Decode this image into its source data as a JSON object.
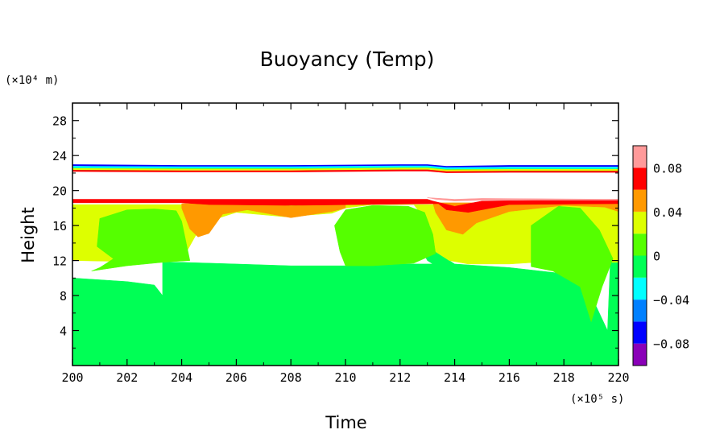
{
  "chart_data": {
    "type": "heatmap",
    "title": "Buoyancy (Temp)",
    "xlabel": "Time",
    "ylabel": "Height",
    "x_unit_note": "(×10⁵ s)",
    "y_unit_note": "(×10⁴ m)",
    "xlim": [
      200,
      220
    ],
    "ylim": [
      0,
      30
    ],
    "x_ticks": [
      200,
      202,
      204,
      206,
      208,
      210,
      212,
      214,
      216,
      218,
      220
    ],
    "y_ticks": [
      4,
      8,
      12,
      16,
      20,
      24,
      28
    ],
    "x_tick_labels": [
      "200",
      "202",
      "204",
      "206",
      "208",
      "210",
      "212",
      "214",
      "216",
      "218",
      "220"
    ],
    "y_tick_labels": [
      "4",
      "8",
      "12",
      "16",
      "20",
      "24",
      "28"
    ],
    "colorbar": {
      "levels": [
        -0.1,
        -0.08,
        -0.06,
        -0.04,
        -0.02,
        0,
        0.02,
        0.04,
        0.06,
        0.08,
        0.1
      ],
      "colors": [
        "#8a00b8",
        "#0000ff",
        "#0080ff",
        "#00ffff",
        "#00ff55",
        "#55ff00",
        "#ddff00",
        "#ff9900",
        "#ff0000",
        "#ff9a9a"
      ],
      "tick_values": [
        -0.08,
        -0.04,
        0,
        0.04,
        0.08
      ],
      "tick_labels": [
        "−0.08",
        "−0.04",
        "0",
        "0.04",
        "0.08"
      ]
    },
    "regions": [
      {
        "name": "lower-layer",
        "value": -0.01,
        "color": "#00ff55",
        "polygon": [
          [
            200,
            0
          ],
          [
            220,
            0
          ],
          [
            220,
            12
          ],
          [
            219.7,
            11.8
          ],
          [
            219.6,
            4
          ],
          [
            219,
            8
          ],
          [
            218,
            10.5
          ],
          [
            216,
            11.2
          ],
          [
            214,
            11.6
          ],
          [
            213.3,
            13
          ],
          [
            212.8,
            15
          ],
          [
            212.3,
            16
          ],
          [
            213,
            12
          ],
          [
            213.2,
            11.6
          ],
          [
            212,
            11.6
          ],
          [
            210,
            11.4
          ],
          [
            208,
            11.4
          ],
          [
            206,
            11.6
          ],
          [
            204,
            11.8
          ],
          [
            203.3,
            11.8
          ],
          [
            203.3,
            8.0
          ],
          [
            203.0,
            9.2
          ],
          [
            202,
            9.6
          ],
          [
            200,
            10
          ]
        ]
      },
      {
        "name": "mid-layer",
        "value": 0.03,
        "color": "#ddff00",
        "polygon": [
          [
            200,
            18.4
          ],
          [
            220,
            18.4
          ],
          [
            220,
            11.8
          ],
          [
            219.7,
            11.8
          ],
          [
            219,
            12.2
          ],
          [
            216,
            11.6
          ],
          [
            214.5,
            11.6
          ],
          [
            213.8,
            12
          ],
          [
            213.3,
            13
          ],
          [
            213.1,
            16
          ],
          [
            212.5,
            18.4
          ],
          [
            211,
            18.4
          ],
          [
            210,
            18.0
          ],
          [
            209.5,
            17.4
          ],
          [
            207.8,
            17.0
          ],
          [
            206,
            17.5
          ],
          [
            205,
            16.5
          ],
          [
            204.5,
            14.8
          ],
          [
            204,
            12.0
          ],
          [
            203.3,
            11.8
          ],
          [
            200,
            12
          ]
        ]
      },
      {
        "name": "left-cell",
        "value": 0.02,
        "color": "#55ff00",
        "polygon": [
          [
            200.7,
            10.8
          ],
          [
            201,
            11.2
          ],
          [
            201.5,
            12.2
          ],
          [
            200.9,
            13.6
          ],
          [
            201,
            16.8
          ],
          [
            202,
            17.8
          ],
          [
            203,
            17.9
          ],
          [
            203.8,
            17.7
          ],
          [
            204.0,
            16.5
          ],
          [
            204.3,
            12
          ],
          [
            203.3,
            11.8
          ],
          [
            202,
            11.4
          ],
          [
            200.7,
            10.8
          ]
        ]
      },
      {
        "name": "middle-cell",
        "value": 0.02,
        "color": "#55ff00",
        "polygon": [
          [
            210,
            11.4
          ],
          [
            209.8,
            13
          ],
          [
            209.6,
            16
          ],
          [
            210,
            17.8
          ],
          [
            211,
            18.3
          ],
          [
            212.3,
            18.2
          ],
          [
            212.9,
            17.5
          ],
          [
            213.2,
            15
          ],
          [
            213.3,
            12.8
          ],
          [
            212.5,
            11.7
          ],
          [
            211,
            11.4
          ]
        ]
      },
      {
        "name": "right-cell",
        "value": 0.02,
        "color": "#55ff00",
        "polygon": [
          [
            216.8,
            11.3
          ],
          [
            216.8,
            16
          ],
          [
            217.8,
            18.2
          ],
          [
            218.6,
            18
          ],
          [
            219.3,
            15.5
          ],
          [
            219.8,
            12.2
          ],
          [
            219.4,
            9
          ],
          [
            219.0,
            5.0
          ],
          [
            218.6,
            9
          ],
          [
            217.6,
            10.8
          ]
        ]
      },
      {
        "name": "warm-band-1",
        "value": 0.05,
        "color": "#ff9900",
        "polygon": [
          [
            204,
            18.5
          ],
          [
            207,
            18.6
          ],
          [
            208,
            18.2
          ],
          [
            209.5,
            18.5
          ],
          [
            210,
            18.6
          ],
          [
            210,
            18.0
          ],
          [
            209.5,
            17.6
          ],
          [
            208,
            16.9
          ],
          [
            206.4,
            17.8
          ],
          [
            205.5,
            17.3
          ],
          [
            205,
            15.1
          ],
          [
            204.6,
            14.7
          ],
          [
            204.3,
            15.6
          ],
          [
            204,
            18.0
          ]
        ]
      },
      {
        "name": "warm-band-2",
        "value": 0.05,
        "color": "#ff9900",
        "polygon": [
          [
            213.2,
            18.6
          ],
          [
            216,
            18.6
          ],
          [
            218,
            18.5
          ],
          [
            220,
            18.6
          ],
          [
            220,
            17.6
          ],
          [
            219.5,
            18.1
          ],
          [
            218,
            18.3
          ],
          [
            216,
            17.6
          ],
          [
            214.8,
            16.3
          ],
          [
            214.3,
            15.0
          ],
          [
            213.7,
            15.5
          ],
          [
            213.3,
            17.5
          ]
        ]
      },
      {
        "name": "upper-red",
        "value": 0.07,
        "color": "#ff0000",
        "polygon": [
          [
            200,
            19.0
          ],
          [
            213,
            19.0
          ],
          [
            213.2,
            18.8
          ],
          [
            214,
            18.2
          ],
          [
            215,
            18.8
          ],
          [
            220,
            19.0
          ],
          [
            220,
            18.5
          ],
          [
            216,
            18.4
          ],
          [
            214.5,
            17.5
          ],
          [
            213.7,
            17.8
          ],
          [
            213.4,
            18.5
          ],
          [
            208,
            18.3
          ],
          [
            205,
            18.4
          ],
          [
            204,
            18.6
          ],
          [
            200,
            18.6
          ]
        ]
      },
      {
        "name": "upper-pink",
        "value": 0.09,
        "color": "#ff9a9a",
        "polygon": [
          [
            213,
            19.2
          ],
          [
            214,
            19.0
          ],
          [
            215,
            19.1
          ],
          [
            220,
            19.0
          ],
          [
            220,
            18.9
          ],
          [
            215,
            18.9
          ],
          [
            214,
            18.8
          ],
          [
            213.3,
            19.0
          ]
        ]
      },
      {
        "name": "tropopause-band",
        "value": 0.0,
        "color": "#00ff55",
        "polygon": [
          [
            200,
            22.3
          ],
          [
            213,
            22.4
          ],
          [
            213.5,
            22.3
          ],
          [
            220,
            22.2
          ],
          [
            220,
            22.6
          ],
          [
            213.5,
            22.7
          ],
          [
            213,
            22.8
          ],
          [
            200,
            22.7
          ]
        ]
      }
    ],
    "lines": [
      {
        "name": "blue-line",
        "color": "#0000ff",
        "points": [
          [
            200,
            22.9
          ],
          [
            204,
            22.8
          ],
          [
            208,
            22.8
          ],
          [
            212,
            22.9
          ],
          [
            213,
            22.9
          ],
          [
            213.7,
            22.7
          ],
          [
            216,
            22.8
          ],
          [
            220,
            22.8
          ]
        ]
      },
      {
        "name": "cyan-line",
        "color": "#00ffff",
        "points": [
          [
            200,
            22.7
          ],
          [
            204,
            22.65
          ],
          [
            208,
            22.65
          ],
          [
            212,
            22.75
          ],
          [
            213,
            22.75
          ],
          [
            213.7,
            22.55
          ],
          [
            216,
            22.6
          ],
          [
            220,
            22.6
          ]
        ]
      },
      {
        "name": "yellow-line",
        "color": "#ddff00",
        "points": [
          [
            200,
            22.45
          ],
          [
            204,
            22.4
          ],
          [
            208,
            22.4
          ],
          [
            212,
            22.5
          ],
          [
            213,
            22.5
          ],
          [
            213.7,
            22.3
          ],
          [
            216,
            22.35
          ],
          [
            220,
            22.35
          ]
        ]
      },
      {
        "name": "red-line",
        "color": "#ff0000",
        "points": [
          [
            200,
            22.25
          ],
          [
            204,
            22.2
          ],
          [
            208,
            22.2
          ],
          [
            212,
            22.3
          ],
          [
            213,
            22.3
          ],
          [
            213.7,
            22.1
          ],
          [
            216,
            22.15
          ],
          [
            220,
            22.15
          ]
        ]
      }
    ]
  }
}
